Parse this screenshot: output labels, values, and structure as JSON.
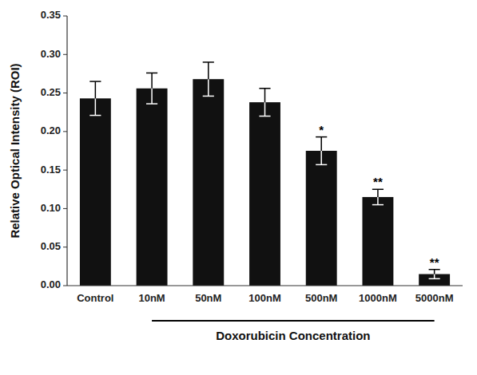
{
  "chart_data": {
    "type": "bar",
    "categories": [
      "Control",
      "10nM",
      "50nM",
      "100nM",
      "500nM",
      "1000nM",
      "5000nM"
    ],
    "values": [
      0.243,
      0.256,
      0.268,
      0.238,
      0.175,
      0.115,
      0.015
    ],
    "errors": [
      0.022,
      0.02,
      0.022,
      0.018,
      0.018,
      0.01,
      0.006
    ],
    "significance": [
      null,
      null,
      null,
      null,
      "*",
      "**",
      "**"
    ],
    "color": "#111111",
    "ylabel": "Relative Optical Intensity (ROI)",
    "xlabel": "Doxorubicin Concentration",
    "ylim": [
      0.0,
      0.35
    ],
    "yticks": [
      {
        "value": 0.0,
        "label": "0.00"
      },
      0.05,
      {
        "value": 0.1,
        "label": "0.10"
      },
      0.15,
      {
        "value": 0.2,
        "label": "0.20"
      },
      0.25,
      {
        "value": 0.3,
        "label": "0.30"
      },
      0.35
    ],
    "grid": false
  }
}
